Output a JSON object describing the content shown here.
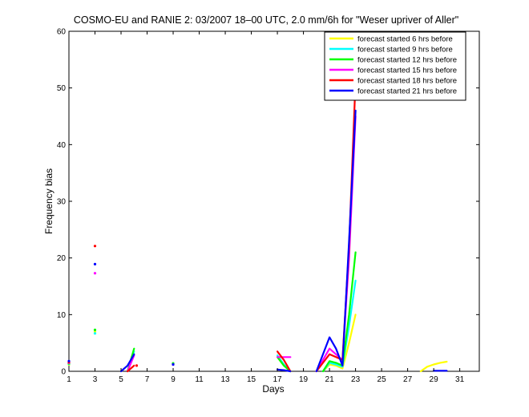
{
  "chart_data": {
    "type": "line",
    "title": "COSMO-EU and RANIE 2: 03/2007 18–00 UTC, 2.0 mm/6h for \"Weser upriver of Aller\"",
    "xlabel": "Days",
    "ylabel": "Frequency bias",
    "xlim": [
      1,
      32.5
    ],
    "ylim": [
      0,
      60
    ],
    "x_ticks": [
      1,
      3,
      5,
      7,
      9,
      11,
      13,
      15,
      17,
      19,
      21,
      23,
      25,
      27,
      29,
      31
    ],
    "y_ticks": [
      0,
      10,
      20,
      30,
      40,
      50,
      60
    ],
    "grid": false,
    "legend_position": "top-right",
    "series": [
      {
        "name": "forecast started 6 hrs before",
        "color": "#ffff00",
        "segments": [
          [
            [
              5.5,
              0
            ],
            [
              6,
              3
            ]
          ],
          [
            [
              17,
              2.5
            ],
            [
              17.5,
              1
            ],
            [
              18,
              0
            ]
          ],
          [
            [
              20.5,
              0
            ],
            [
              21,
              1.2
            ],
            [
              21.5,
              1.0
            ],
            [
              22,
              0.5
            ],
            [
              22.5,
              5
            ],
            [
              23,
              10
            ]
          ],
          [
            [
              28,
              0
            ],
            [
              28.5,
              0.8
            ],
            [
              29,
              1.2
            ],
            [
              29.5,
              1.5
            ],
            [
              30,
              1.7
            ]
          ]
        ],
        "points": [
          [
            1,
            1.2
          ],
          [
            3,
            7
          ],
          [
            9,
            1.3
          ]
        ]
      },
      {
        "name": "forecast started 9 hrs before",
        "color": "#00ffff",
        "segments": [
          [
            [
              5.5,
              0
            ],
            [
              6,
              3.5
            ]
          ],
          [
            [
              17,
              2.8
            ],
            [
              17.5,
              1.2
            ],
            [
              18,
              0
            ]
          ],
          [
            [
              20.5,
              0
            ],
            [
              21,
              1.5
            ],
            [
              21.5,
              1.2
            ],
            [
              22,
              0.8
            ],
            [
              22.5,
              8
            ],
            [
              23,
              16
            ]
          ]
        ],
        "points": [
          [
            1,
            1.3
          ],
          [
            3,
            6.7
          ],
          [
            9,
            1.3
          ]
        ]
      },
      {
        "name": "forecast started 12 hrs before",
        "color": "#00ff00",
        "segments": [
          [
            [
              5.5,
              0
            ],
            [
              6,
              4
            ]
          ],
          [
            [
              17,
              2.5
            ],
            [
              17.5,
              1
            ],
            [
              18,
              0
            ]
          ],
          [
            [
              20.5,
              0
            ],
            [
              21,
              1.8
            ],
            [
              21.5,
              1.5
            ],
            [
              22,
              1
            ],
            [
              22.5,
              10
            ],
            [
              23,
              21
            ]
          ]
        ],
        "points": [
          [
            1,
            1.4
          ],
          [
            3,
            7.3
          ],
          [
            9,
            1.4
          ]
        ]
      },
      {
        "name": "forecast started 15 hrs before",
        "color": "#ff00ff",
        "segments": [
          [
            [
              5.5,
              0
            ],
            [
              6,
              2.8
            ]
          ],
          [
            [
              17,
              2.5
            ],
            [
              17.5,
              2.5
            ],
            [
              18,
              2.5
            ]
          ],
          [
            [
              20,
              0
            ],
            [
              21,
              4
            ],
            [
              21.5,
              3
            ],
            [
              22,
              2
            ],
            [
              22.5,
              20
            ],
            [
              23,
              45
            ]
          ]
        ],
        "points": [
          [
            1,
            1.5
          ],
          [
            3,
            17.3
          ],
          [
            9,
            1.2
          ]
        ]
      },
      {
        "name": "forecast started 18 hrs before",
        "color": "#ff0000",
        "segments": [
          [
            [
              5.5,
              0
            ],
            [
              6,
              1
            ]
          ],
          [
            [
              17,
              3.5
            ],
            [
              17.5,
              2
            ],
            [
              18,
              0
            ]
          ],
          [
            [
              20,
              0
            ],
            [
              21,
              3
            ],
            [
              21.5,
              2.5
            ],
            [
              22,
              2
            ],
            [
              22.5,
              22
            ],
            [
              23,
              51.3
            ]
          ]
        ],
        "points": [
          [
            1,
            1.6
          ],
          [
            3,
            22.1
          ],
          [
            6.2,
            1.0
          ]
        ]
      },
      {
        "name": "forecast started 21 hrs before",
        "color": "#0000ff",
        "segments": [
          [
            [
              5,
              0
            ],
            [
              5.5,
              1
            ],
            [
              6,
              3
            ]
          ],
          [
            [
              17,
              0.3
            ],
            [
              17.5,
              0.2
            ],
            [
              18,
              0
            ]
          ],
          [
            [
              20,
              0
            ],
            [
              21,
              6
            ],
            [
              21.5,
              4
            ],
            [
              22,
              1
            ],
            [
              22.5,
              23
            ],
            [
              23,
              46
            ]
          ],
          [
            [
              29,
              0.1
            ],
            [
              30,
              0.1
            ]
          ]
        ],
        "points": [
          [
            1,
            1.8
          ],
          [
            3,
            18.9
          ],
          [
            9,
            1.2
          ]
        ]
      }
    ]
  }
}
